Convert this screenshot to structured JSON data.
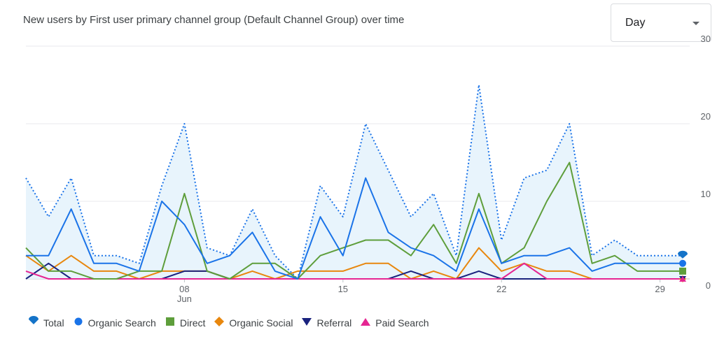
{
  "header": {
    "title": "New users by First user primary channel group (Default Channel Group) over time",
    "period_select": "Day"
  },
  "chart_data": {
    "type": "line",
    "x": [
      "Jun 1",
      "Jun 2",
      "Jun 3",
      "Jun 4",
      "Jun 5",
      "Jun 6",
      "Jun 7",
      "Jun 8",
      "Jun 9",
      "Jun 10",
      "Jun 11",
      "Jun 12",
      "Jun 13",
      "Jun 14",
      "Jun 15",
      "Jun 16",
      "Jun 17",
      "Jun 18",
      "Jun 19",
      "Jun 20",
      "Jun 21",
      "Jun 22",
      "Jun 23",
      "Jun 24",
      "Jun 25",
      "Jun 26",
      "Jun 27",
      "Jun 28",
      "Jun 29",
      "Jun 30"
    ],
    "x_ticks": [
      {
        "index": 7,
        "label": "08",
        "sublabel": "Jun"
      },
      {
        "index": 14,
        "label": "15",
        "sublabel": ""
      },
      {
        "index": 21,
        "label": "22",
        "sublabel": ""
      },
      {
        "index": 28,
        "label": "29",
        "sublabel": ""
      }
    ],
    "y_ticks": [
      0,
      10,
      20,
      30
    ],
    "ylim": [
      0,
      30
    ],
    "y_axis_position": "right",
    "legend_position": "bottom-left",
    "series": [
      {
        "name": "Total",
        "color": "#1a73e8",
        "marker": "tear",
        "style": "dotted-area",
        "values": [
          13,
          8,
          13,
          3,
          3,
          2,
          12,
          20,
          4,
          3,
          9,
          3,
          0,
          12,
          8,
          20,
          14,
          8,
          11,
          3,
          25,
          5,
          13,
          14,
          20,
          3,
          5,
          3,
          3,
          3
        ]
      },
      {
        "name": "Organic Search",
        "color": "#1a73e8",
        "marker": "circle",
        "style": "solid",
        "values": [
          3,
          3,
          9,
          2,
          2,
          1,
          10,
          7,
          2,
          3,
          6,
          1,
          0,
          8,
          3,
          13,
          6,
          4,
          3,
          1,
          9,
          2,
          3,
          3,
          4,
          1,
          2,
          2,
          2,
          2
        ]
      },
      {
        "name": "Direct",
        "color": "#5e9e3b",
        "marker": "square",
        "style": "solid",
        "values": [
          4,
          1,
          1,
          0,
          0,
          1,
          1,
          11,
          1,
          0,
          2,
          2,
          0,
          3,
          4,
          5,
          5,
          3,
          7,
          2,
          11,
          2,
          4,
          10,
          15,
          2,
          3,
          1,
          1,
          1
        ]
      },
      {
        "name": "Organic Social",
        "color": "#e8870e",
        "marker": "diamond",
        "style": "solid",
        "values": [
          3,
          1,
          3,
          1,
          1,
          0,
          1,
          1,
          1,
          0,
          1,
          0,
          1,
          1,
          1,
          2,
          2,
          0,
          1,
          0,
          4,
          1,
          2,
          1,
          1,
          0,
          0,
          0,
          0,
          0
        ]
      },
      {
        "name": "Referral",
        "color": "#1a237e",
        "marker": "triangle-down",
        "style": "solid",
        "values": [
          0,
          2,
          0,
          0,
          0,
          0,
          0,
          1,
          1,
          0,
          0,
          0,
          0,
          0,
          0,
          0,
          0,
          1,
          0,
          0,
          1,
          0,
          0,
          0,
          0,
          0,
          0,
          0,
          0,
          0
        ]
      },
      {
        "name": "Paid Search",
        "color": "#e52592",
        "marker": "triangle-up",
        "style": "solid",
        "values": [
          1,
          0,
          0,
          0,
          0,
          0,
          0,
          0,
          0,
          0,
          0,
          0,
          0,
          0,
          0,
          0,
          0,
          0,
          0,
          0,
          0,
          0,
          2,
          0,
          0,
          0,
          0,
          0,
          0,
          0
        ]
      }
    ]
  }
}
